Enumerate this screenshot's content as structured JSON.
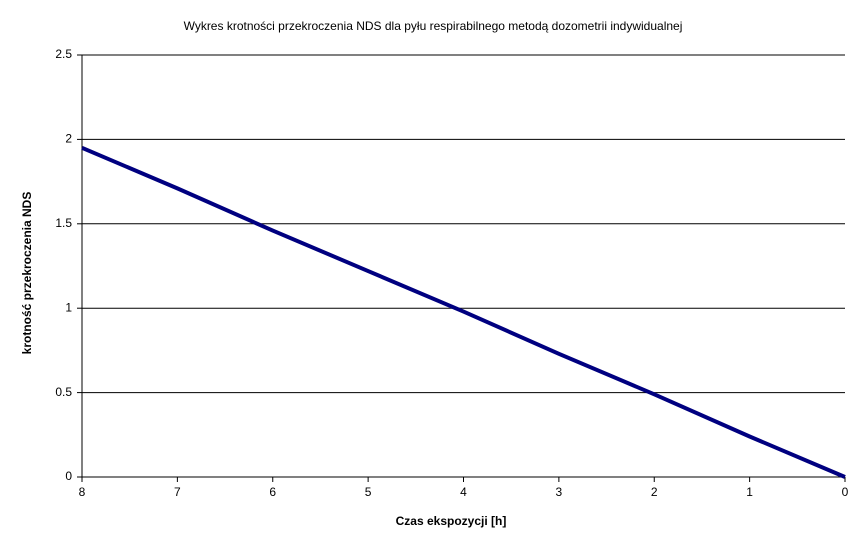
{
  "chart_data": {
    "type": "line",
    "title": "Wykres krotności przekroczenia NDS dla pyłu respirabilnego metodą dozometrii indywidualnej",
    "x_label": "Czas ekspozycji [h]",
    "y_label": "krotność przekroczenia NDS",
    "x": [
      8,
      7,
      6,
      5,
      4,
      3,
      2,
      1,
      0
    ],
    "series": [
      {
        "name": "krotność przekroczenia NDS",
        "color": "#000080",
        "values": [
          1.95,
          1.71,
          1.46,
          1.22,
          0.98,
          0.73,
          0.49,
          0.24,
          0
        ]
      }
    ],
    "xlim": [
      8,
      0
    ],
    "xticks": [
      8,
      7,
      6,
      5,
      4,
      3,
      2,
      1,
      0
    ],
    "ylim": [
      0,
      2.5
    ],
    "yticks": [
      0,
      0.5,
      1,
      1.5,
      2,
      2.5
    ],
    "grid": true
  }
}
